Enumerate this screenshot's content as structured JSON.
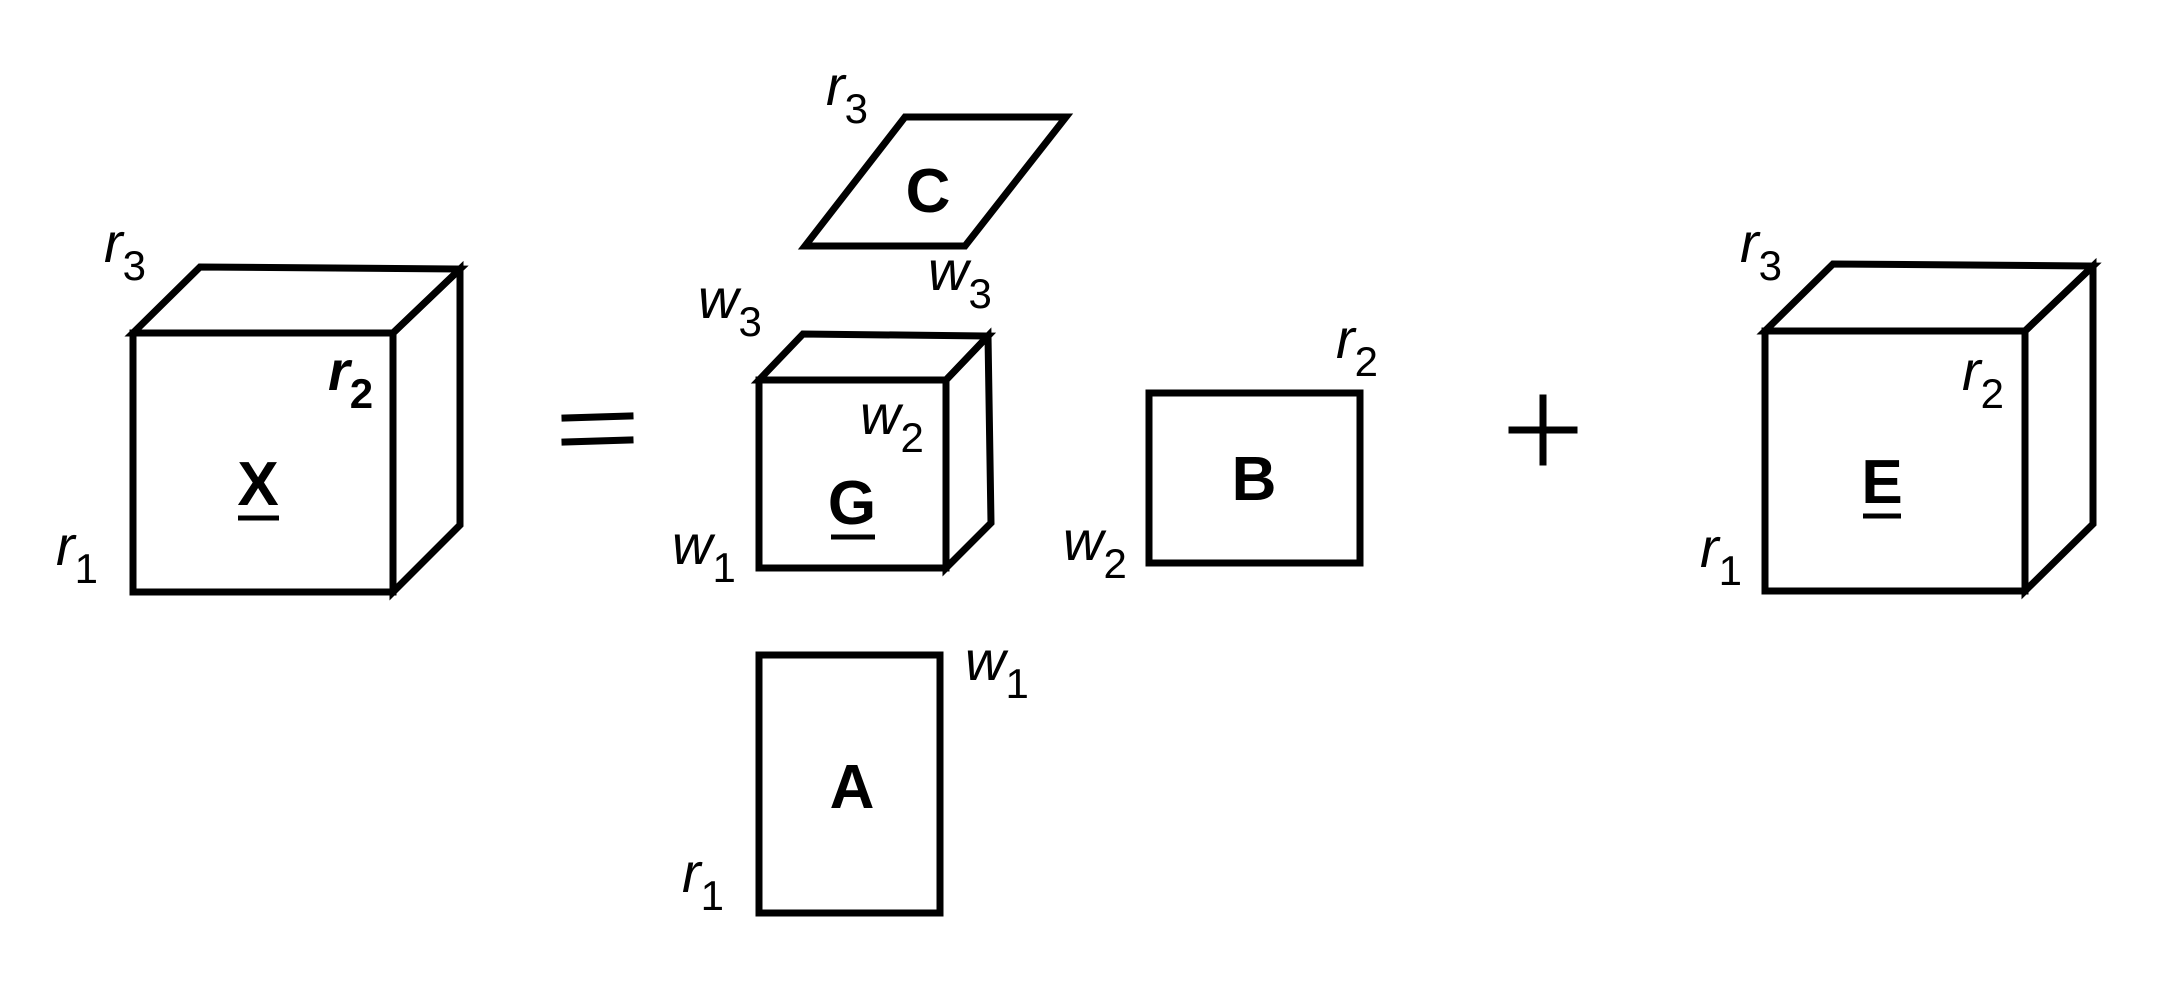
{
  "equals_sign": "=",
  "plus_sign": "+",
  "tensor_X": {
    "name": "X",
    "dim1": {
      "base": "r",
      "sub": "1"
    },
    "dim2": {
      "base": "r",
      "sub": "2"
    },
    "dim3": {
      "base": "r",
      "sub": "3"
    }
  },
  "core_G": {
    "name": "G",
    "dim1": {
      "base": "w",
      "sub": "1"
    },
    "dim2": {
      "base": "w",
      "sub": "2"
    },
    "dim3": {
      "base": "w",
      "sub": "3"
    }
  },
  "matrix_A": {
    "name": "A",
    "rows": {
      "base": "r",
      "sub": "1"
    },
    "cols": {
      "base": "w",
      "sub": "1"
    }
  },
  "matrix_B": {
    "name": "B",
    "rows": {
      "base": "w",
      "sub": "2"
    },
    "cols": {
      "base": "r",
      "sub": "2"
    }
  },
  "matrix_C": {
    "name": "C",
    "rows": {
      "base": "r",
      "sub": "3"
    },
    "cols": {
      "base": "w",
      "sub": "3"
    }
  },
  "tensor_E": {
    "name": "E",
    "dim1": {
      "base": "r",
      "sub": "1"
    },
    "dim2": {
      "base": "r",
      "sub": "2"
    },
    "dim3": {
      "base": "r",
      "sub": "3"
    }
  }
}
